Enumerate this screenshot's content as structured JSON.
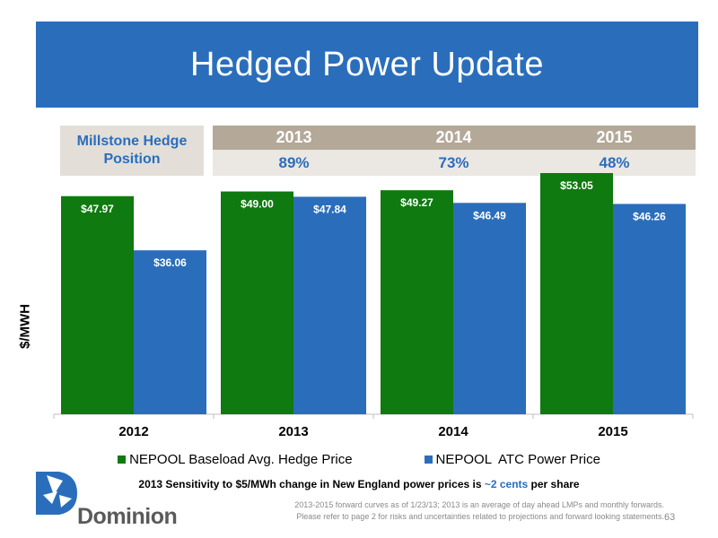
{
  "title": "Hedged Power Update",
  "hedge": {
    "label": "Millstone Hedge Position",
    "columns": [
      {
        "year": "2013",
        "pct": "89%"
      },
      {
        "year": "2014",
        "pct": "73%"
      },
      {
        "year": "2015",
        "pct": "48%"
      }
    ]
  },
  "colors": {
    "title_bg": "#2a6ebb",
    "baseload": "#0f7a0f",
    "atc": "#2a6ebb",
    "hedge_year_bg": "#b4a898",
    "hedge_pct_bg": "#ebe7e2"
  },
  "chart_data": {
    "type": "bar",
    "categories": [
      "2012",
      "2013",
      "2014",
      "2015"
    ],
    "series": [
      {
        "name": "NEPOOL Baseload Avg. Hedge Price",
        "values": [
          47.97,
          49.0,
          49.27,
          53.05
        ],
        "labels": [
          "$47.97",
          "$49.00",
          "$49.27",
          "$53.05"
        ]
      },
      {
        "name": "NEPOOL  ATC Power Price",
        "values": [
          36.06,
          47.84,
          46.49,
          46.26
        ],
        "labels": [
          "$36.06",
          "$47.84",
          "$46.49",
          "$46.26"
        ]
      }
    ],
    "ylabel": "$/MWH",
    "ylim": [
      0,
      60
    ],
    "grid": false,
    "legend_position": "bottom"
  },
  "sensitivity": {
    "before": "2013 Sensitivity to $5/MWh change in New England power prices is ",
    "highlight": "~2 cents",
    "after": " per share"
  },
  "footnote": {
    "line1": "2013-2015 forward curves as of 1/23/13; 2013 is an average of day ahead LMPs and monthly forwards.",
    "line2": "Please refer to page 2 for risks and uncertainties related to projections and forward looking statements."
  },
  "page_number": "63",
  "logo": {
    "text": "Dominion",
    "icon": "dominion-logo-icon"
  }
}
